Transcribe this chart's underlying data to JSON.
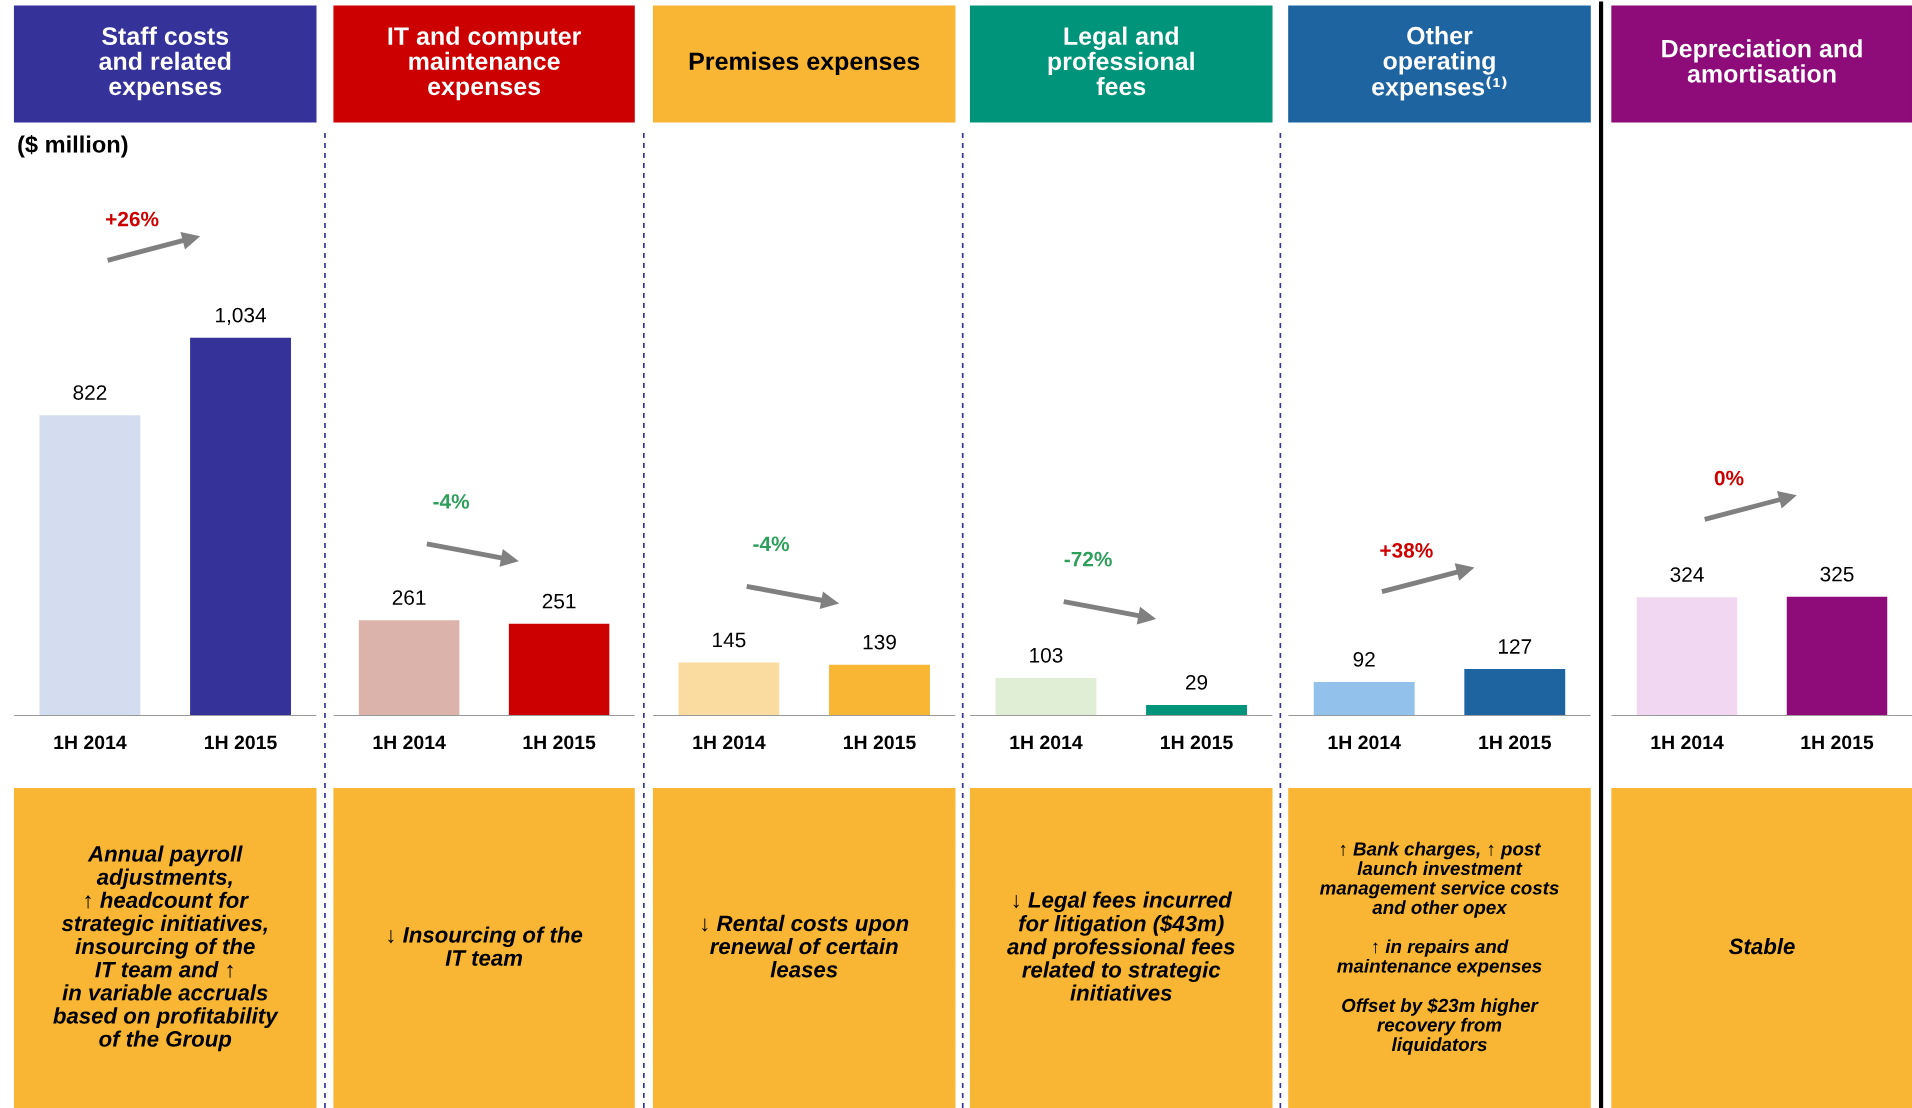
{
  "chart_data": [
    {
      "type": "bar",
      "title": "Staff costs\nand related\nexpenses",
      "ylabel": "($ million)",
      "categories": [
        "1H 2014",
        "1H 2015"
      ],
      "values": [
        822,
        1034
      ],
      "value_labels": [
        "822",
        "1,034"
      ],
      "colors": [
        "#d4dcef",
        "#35339a"
      ],
      "annotations": [
        "+26%",
        "Annual payroll\nadjustments,\n↑ headcount for\nstrategic initiatives,\ninsourcing of the\nIT team and ↑\nin variable accruals\nbased on profitability\nof the Group"
      ]
    },
    {
      "type": "bar",
      "title": "IT and computer\nmaintenance\nexpenses",
      "categories": [
        "1H 2014",
        "1H 2015"
      ],
      "values": [
        261,
        251
      ],
      "colors": [
        "#dcb3ab",
        "#cc0000"
      ],
      "data_labels": true,
      "annotations": [
        "-4%",
        "↓ Insourcing of the\nIT team"
      ]
    },
    {
      "type": "bar",
      "title": "Premises expenses",
      "categories": [
        "1H 2014",
        "1H 2015"
      ],
      "values": [
        145,
        139
      ],
      "colors": [
        "#fbdca0",
        "#f9b634"
      ],
      "data_labels": true,
      "annotations": [
        "-4%",
        "↓ Rental costs upon\nrenewal of certain\nleases"
      ]
    },
    {
      "type": "bar",
      "title": "Legal and\nprofessional\nfees",
      "categories": [
        "1H 2014",
        "1H 2015"
      ],
      "values": [
        103,
        29
      ],
      "colors": [
        "#e0eed5",
        "#00957a"
      ],
      "data_labels": true,
      "annotations": [
        "-72%",
        "↓ Legal fees incurred\nfor litigation ($43m)\nand professional fees\nrelated to strategic\ninitiatives"
      ]
    },
    {
      "type": "bar",
      "title": "Other\noperating\nexpenses⁽¹⁾",
      "categories": [
        "1H 2014",
        "1H 2015"
      ],
      "values": [
        92,
        127
      ],
      "colors": [
        "#92c2ec",
        "#1e64a0"
      ],
      "data_labels": true,
      "annotations": [
        "+38%",
        "↑ Bank charges, ↑ post\nlaunch investment\nmanagement service costs\nand other opex\n\n↑ in repairs and\nmaintenance expenses\n\nOffset by $23m higher\nrecovery from\nliquidators"
      ]
    },
    {
      "type": "bar",
      "title": "Depreciation and\namortisation",
      "categories": [
        "1H 2014",
        "1H 2015"
      ],
      "values": [
        324,
        325
      ],
      "colors": [
        "#f2d7f2",
        "#8e0b7a"
      ],
      "data_labels": true,
      "annotations": [
        "0%",
        "Stable"
      ]
    }
  ]
}
